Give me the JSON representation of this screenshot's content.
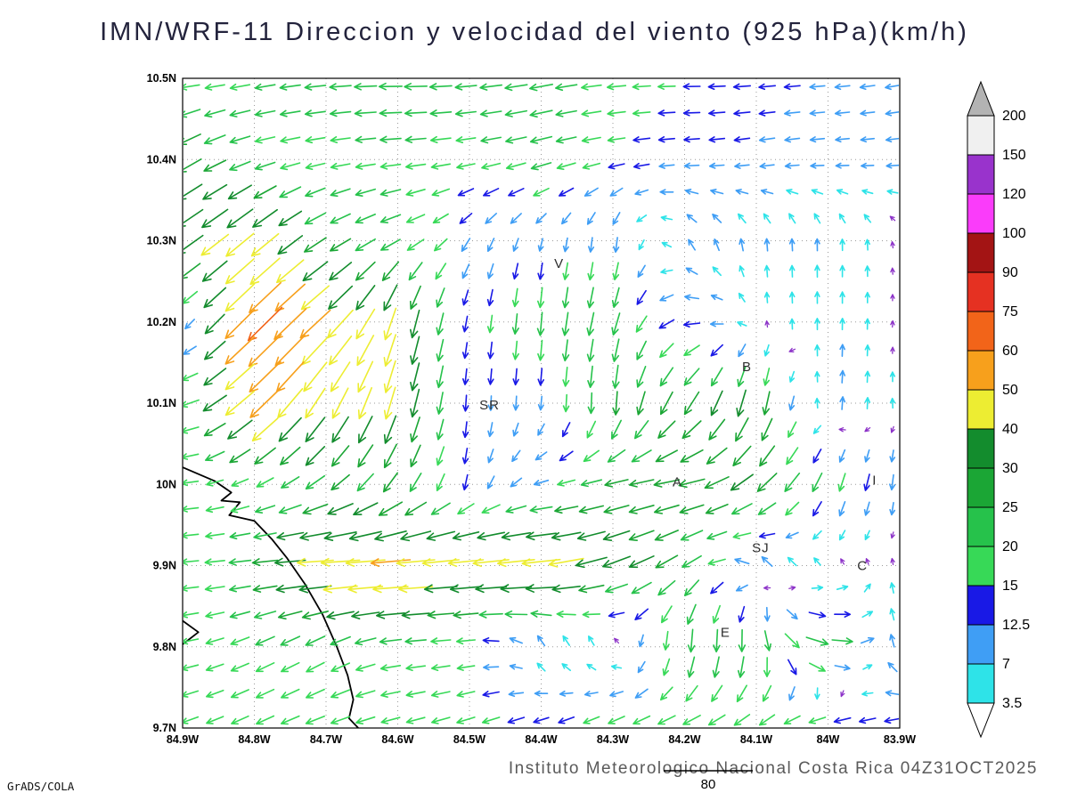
{
  "title": "IMN/WRF-11 Direccion y velocidad del viento (925 hPa)(km/h)",
  "footer": {
    "text": "Instituto Meteorologico Nacional Costa Rica 04Z31OCT2025",
    "credit": "GrADS/COLA",
    "ref_value": "80"
  },
  "chart_data": {
    "type": "vector_field",
    "title": "IMN/WRF-11 Direccion y velocidad del viento (925 hPa)(km/h)",
    "units": "km/h",
    "level": "925 hPa",
    "datetime": "04Z31OCT2025",
    "lon_ticks": {
      "values": [
        84.9,
        84.8,
        84.7,
        84.6,
        84.5,
        84.4,
        84.3,
        84.2,
        84.1,
        84.0,
        83.9
      ],
      "labels": [
        "84.9W",
        "84.8W",
        "84.7W",
        "84.6W",
        "84.5W",
        "84.4W",
        "84.3W",
        "84.2W",
        "84.1W",
        "84W",
        "83.9W"
      ]
    },
    "lat_ticks": {
      "values": [
        10.5,
        10.4,
        10.3,
        10.2,
        10.1,
        10.0,
        9.9,
        9.8,
        9.7
      ],
      "labels": [
        "10.5N",
        "10.4N",
        "10.3N",
        "10.2N",
        "10.1N",
        "10N",
        "9.9N",
        "9.8N",
        "9.7N"
      ]
    },
    "legend": {
      "levels": [
        3.5,
        7,
        12.5,
        15,
        20,
        25,
        30,
        40,
        50,
        60,
        75,
        90,
        100,
        120,
        150,
        200
      ],
      "labels": [
        "3.5",
        "7",
        "12.5",
        "15",
        "20",
        "25",
        "30",
        "40",
        "50",
        "60",
        "75",
        "90",
        "100",
        "120",
        "150",
        "200"
      ],
      "colors_low_to_high": [
        "#2ee3e8",
        "#3f9ef5",
        "#1919e6",
        "#37d957",
        "#26c24b",
        "#1ba635",
        "#138c2d",
        "#eded32",
        "#f7a01c",
        "#f26419",
        "#e53122",
        "#a31414",
        "#fa3cfa",
        "#9933cc",
        "#f0f0f0"
      ],
      "below_color": "#ffffff",
      "above_color": "#b3b3b3",
      "calm_arrow_color": "#8c32c8"
    },
    "stations": [
      {
        "label": "V",
        "lon_w": 84.375,
        "lat": 10.272
      },
      {
        "label": "SR",
        "lon_w": 84.472,
        "lat": 10.098
      },
      {
        "label": "B",
        "lon_w": 84.113,
        "lat": 10.145
      },
      {
        "label": "A",
        "lon_w": 84.21,
        "lat": 10.003
      },
      {
        "label": "SJ",
        "lon_w": 84.094,
        "lat": 9.922
      },
      {
        "label": "C",
        "lon_w": 83.952,
        "lat": 9.9
      },
      {
        "label": "E",
        "lon_w": 84.143,
        "lat": 9.818
      },
      {
        "label": "I",
        "lon_w": 83.935,
        "lat": 10.005
      }
    ],
    "coastline": [
      [
        84.9,
        10.021
      ],
      [
        84.855,
        10.004
      ],
      [
        84.832,
        9.99
      ],
      [
        84.846,
        9.98
      ],
      [
        84.82,
        9.978
      ],
      [
        84.835,
        9.962
      ],
      [
        84.8,
        9.955
      ],
      [
        84.775,
        9.932
      ],
      [
        84.755,
        9.91
      ],
      [
        84.73,
        9.878
      ],
      [
        84.705,
        9.84
      ],
      [
        84.685,
        9.8
      ],
      [
        84.67,
        9.765
      ],
      [
        84.662,
        9.735
      ],
      [
        84.668,
        9.712
      ],
      [
        84.655,
        9.7
      ]
    ],
    "coastline2": [
      [
        84.9,
        9.832
      ],
      [
        84.878,
        9.818
      ],
      [
        84.9,
        9.803
      ]
    ],
    "reference_arrow": {
      "value": 80
    },
    "wind_grid": {
      "note": "dir is the on-screen pointing direction of the arrow in math degrees (0=E, 90=N); speed in km/h",
      "lons_w": [
        84.9,
        84.8,
        84.7,
        84.6,
        84.5,
        84.4,
        84.3,
        84.2,
        84.1,
        84.0,
        83.9
      ],
      "lats": [
        10.5,
        10.4,
        10.3,
        10.2,
        10.1,
        10.0,
        9.9,
        9.8,
        9.7
      ],
      "vectors_dir_speed": [
        [
          [
            185,
            18
          ],
          [
            190,
            20
          ],
          [
            185,
            22
          ],
          [
            180,
            25
          ],
          [
            185,
            22
          ],
          [
            190,
            25
          ],
          [
            185,
            18
          ],
          [
            180,
            15
          ],
          [
            185,
            15
          ],
          [
            185,
            12
          ],
          [
            190,
            12
          ]
        ],
        [
          [
            210,
            30
          ],
          [
            195,
            20
          ],
          [
            190,
            18
          ],
          [
            185,
            20
          ],
          [
            190,
            18
          ],
          [
            195,
            22
          ],
          [
            190,
            15
          ],
          [
            185,
            12
          ],
          [
            190,
            12
          ],
          [
            185,
            10
          ],
          [
            185,
            8
          ]
        ],
        [
          [
            215,
            40
          ],
          [
            220,
            45
          ],
          [
            210,
            25
          ],
          [
            205,
            22
          ],
          [
            240,
            12
          ],
          [
            255,
            8
          ],
          [
            265,
            12
          ],
          [
            120,
            8
          ],
          [
            95,
            8
          ],
          [
            90,
            7
          ],
          [
            100,
            3
          ]
        ],
        [
          [
            230,
            3
          ],
          [
            225,
            65
          ],
          [
            222,
            50
          ],
          [
            255,
            40
          ],
          [
            260,
            12
          ],
          [
            265,
            25
          ],
          [
            255,
            25
          ],
          [
            185,
            15
          ],
          [
            95,
            3
          ],
          [
            90,
            7
          ],
          [
            85,
            3
          ]
        ],
        [
          [
            190,
            15
          ],
          [
            222,
            55
          ],
          [
            240,
            42
          ],
          [
            255,
            40
          ],
          [
            268,
            12
          ],
          [
            265,
            10
          ],
          [
            268,
            25
          ],
          [
            235,
            30
          ],
          [
            258,
            32
          ],
          [
            85,
            10
          ],
          [
            95,
            3
          ]
        ],
        [
          [
            185,
            15
          ],
          [
            205,
            16
          ],
          [
            215,
            25
          ],
          [
            235,
            25
          ],
          [
            260,
            12
          ],
          [
            195,
            12
          ],
          [
            192,
            26
          ],
          [
            190,
            30
          ],
          [
            220,
            32
          ],
          [
            250,
            20
          ],
          [
            265,
            12
          ]
        ],
        [
          [
            185,
            15
          ],
          [
            186,
            25
          ],
          [
            183,
            50
          ],
          [
            184,
            52
          ],
          [
            185,
            45
          ],
          [
            186,
            50
          ],
          [
            200,
            35
          ],
          [
            215,
            25
          ],
          [
            130,
            12
          ],
          [
            110,
            3
          ],
          [
            95,
            3
          ]
        ],
        [
          [
            190,
            15
          ],
          [
            205,
            20
          ],
          [
            210,
            20
          ],
          [
            185,
            20
          ],
          [
            185,
            15
          ],
          [
            95,
            7
          ],
          [
            85,
            5
          ],
          [
            268,
            25
          ],
          [
            272,
            25
          ],
          [
            350,
            30
          ],
          [
            120,
            12
          ]
        ],
        [
          [
            200,
            16
          ],
          [
            205,
            18
          ],
          [
            200,
            20
          ],
          [
            195,
            18
          ],
          [
            198,
            18
          ],
          [
            200,
            15
          ],
          [
            205,
            18
          ],
          [
            200,
            20
          ],
          [
            210,
            18
          ],
          [
            190,
            20
          ],
          [
            195,
            15
          ]
        ]
      ]
    }
  }
}
